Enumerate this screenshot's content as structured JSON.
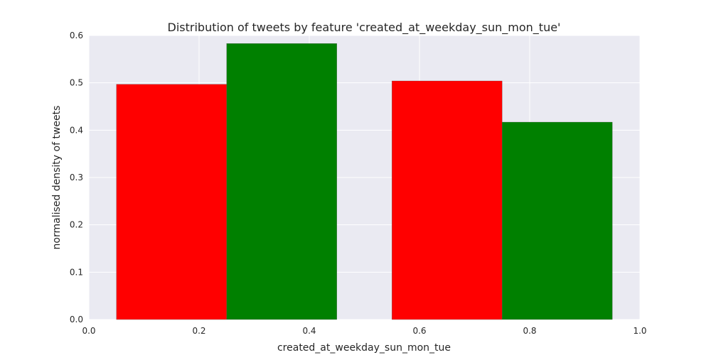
{
  "chart_data": {
    "type": "bar",
    "title": "Distribution of tweets by feature 'created_at_weekday_sun_mon_tue'",
    "xlabel": "created_at_weekday_sun_mon_tue",
    "ylabel": "normalised density of tweets",
    "xlim": [
      0.0,
      1.0
    ],
    "ylim": [
      0.0,
      0.6
    ],
    "xticks": [
      "0.0",
      "0.2",
      "0.4",
      "0.6",
      "0.8",
      "1.0"
    ],
    "yticks": [
      "0.0",
      "0.1",
      "0.2",
      "0.3",
      "0.4",
      "0.5",
      "0.6"
    ],
    "grid": true,
    "background": "#eaeaf2",
    "bars": [
      {
        "x0": 0.05,
        "x1": 0.25,
        "value": 0.497,
        "color": "#ff0000"
      },
      {
        "x0": 0.25,
        "x1": 0.45,
        "value": 0.583,
        "color": "#008000"
      },
      {
        "x0": 0.55,
        "x1": 0.75,
        "value": 0.504,
        "color": "#ff0000"
      },
      {
        "x0": 0.75,
        "x1": 0.95,
        "value": 0.417,
        "color": "#008000"
      }
    ]
  }
}
